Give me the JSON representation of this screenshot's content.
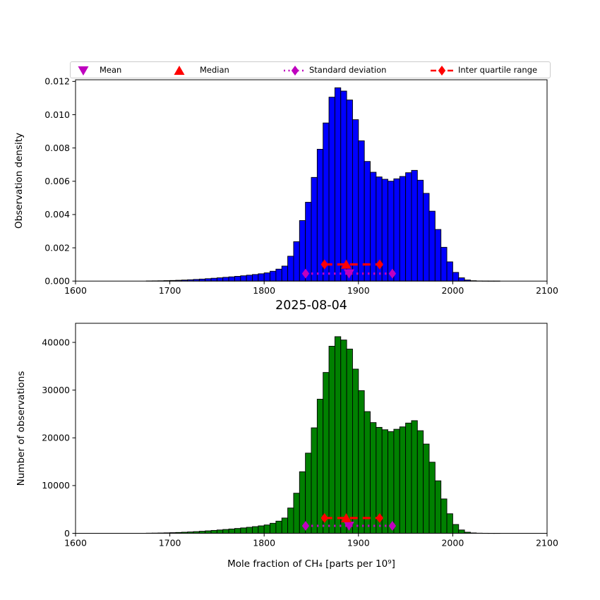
{
  "figure": {
    "background": "#ffffff"
  },
  "legend": {
    "items": [
      {
        "label": "Mean",
        "marker": "triangle-down",
        "color": "#bf00bf",
        "line": "none"
      },
      {
        "label": "Median",
        "marker": "triangle-up",
        "color": "#ff0000",
        "line": "none"
      },
      {
        "label": "Standard deviation",
        "marker": "diamond",
        "color": "#bf00bf",
        "line": "dotted"
      },
      {
        "label": "Inter quartile range",
        "marker": "diamond",
        "color": "#ff0000",
        "line": "dashed"
      }
    ]
  },
  "stats": {
    "mean": 1890,
    "median": 1887,
    "q1": 1864,
    "q3": 1922.5,
    "std_low": 1844,
    "std_high": 1936
  },
  "chart_data": [
    {
      "type": "bar",
      "title": "",
      "ylabel": "Observation density",
      "bar_color": "#0000ff",
      "bar_edge_color": "#000000",
      "bin_start": 1675,
      "bin_width": 6.25,
      "xlim": [
        1600,
        2100
      ],
      "ylim": [
        0,
        0.0121
      ],
      "xticks": [
        1600,
        1700,
        1800,
        1900,
        2000,
        2100
      ],
      "yticks": [
        0,
        0.002,
        0.004,
        0.006,
        0.008,
        0.01,
        0.012
      ],
      "ytick_labels": [
        "0.000",
        "0.002",
        "0.004",
        "0.006",
        "0.008",
        "0.010",
        "0.012"
      ],
      "values": [
        8e-06,
        1.3e-05,
        1.8e-05,
        2.7e-05,
        3.7e-05,
        4.9e-05,
        6.3e-05,
        8e-05,
        0.0001,
        0.000121,
        0.000145,
        0.000171,
        0.000197,
        0.000226,
        0.000255,
        0.000286,
        0.000319,
        0.000355,
        0.000395,
        0.00044,
        0.000494,
        0.000592,
        0.000719,
        0.000902,
        0.001495,
        0.002369,
        0.003638,
        0.004738,
        0.006232,
        0.007924,
        0.009504,
        0.011055,
        0.011618,
        0.011421,
        0.010885,
        0.009701,
        0.008432,
        0.007191,
        0.006542,
        0.00626,
        0.006119,
        0.006006,
        0.006147,
        0.006288,
        0.006514,
        0.006655,
        0.006063,
        0.005273,
        0.004202,
        0.003102,
        0.002031,
        0.001156,
        0.000522,
        0.000197,
        6.5e-05,
        2.3e-05,
        8e-06,
        3e-06,
        1e-06,
        1e-06
      ],
      "marker_lines": {
        "iqr_y": 0.001,
        "std_y": 0.00045
      },
      "grid": false,
      "legend_position": "top-outside"
    },
    {
      "type": "bar",
      "title": "2025-08-04",
      "ylabel": "Number of observations",
      "xlabel": "Mole fraction of CH₄ [parts per 10⁹]",
      "bar_color": "#008000",
      "bar_edge_color": "#000000",
      "bin_start": 1675,
      "bin_width": 6.25,
      "xlim": [
        1600,
        2100
      ],
      "ylim": [
        0,
        44000
      ],
      "xticks": [
        1600,
        1700,
        1800,
        1900,
        2000,
        2100
      ],
      "yticks": [
        0,
        10000,
        20000,
        30000,
        40000
      ],
      "ytick_labels": [
        "0",
        "10000",
        "20000",
        "30000",
        "40000"
      ],
      "values": [
        30,
        45,
        65,
        95,
        130,
        175,
        225,
        285,
        355,
        430,
        515,
        605,
        700,
        800,
        905,
        1015,
        1130,
        1260,
        1400,
        1560,
        1750,
        2100,
        2550,
        3200,
        5300,
        8400,
        12900,
        16800,
        22100,
        28100,
        33700,
        39200,
        41200,
        40500,
        38600,
        34400,
        29900,
        25500,
        23200,
        22200,
        21700,
        21300,
        21800,
        22300,
        23100,
        23600,
        21500,
        18700,
        14900,
        11000,
        7200,
        4100,
        1850,
        700,
        230,
        80,
        30,
        12,
        5,
        2
      ],
      "marker_lines": {
        "iqr_y": 3200,
        "std_y": 1560
      },
      "grid": false
    }
  ]
}
